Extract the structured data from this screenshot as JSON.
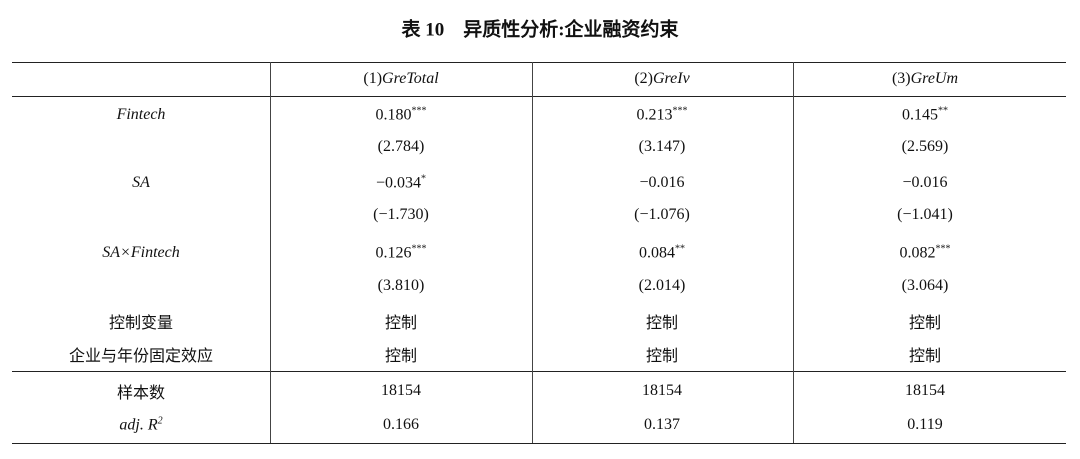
{
  "title": "表 10　异质性分析:企业融资约束",
  "table": {
    "header": [
      {
        "num": "(1)",
        "name": "GreTotal"
      },
      {
        "num": "(2)",
        "name": "GreIv"
      },
      {
        "num": "(3)",
        "name": "GreUm"
      }
    ],
    "rows": [
      {
        "label": {
          "text": "Fintech",
          "style": "italic"
        },
        "cells": [
          {
            "value": "0.180",
            "stars": "***"
          },
          {
            "value": "0.213",
            "stars": "***"
          },
          {
            "value": "0.145",
            "stars": "**"
          }
        ]
      },
      {
        "cells": [
          {
            "value": "(2.784)"
          },
          {
            "value": "(3.147)"
          },
          {
            "value": "(2.569)"
          }
        ]
      },
      {
        "label": {
          "text": "SA",
          "style": "italic"
        },
        "cells": [
          {
            "value": "−0.034",
            "stars": "*"
          },
          {
            "value": "−0.016"
          },
          {
            "value": "−0.016"
          }
        ]
      },
      {
        "cells": [
          {
            "value": "(−1.730)"
          },
          {
            "value": "(−1.076)"
          },
          {
            "value": "(−1.041)"
          }
        ]
      },
      {
        "label": {
          "text": "SA×Fintech",
          "style": "italic"
        },
        "cells": [
          {
            "value": "0.126",
            "stars": "***"
          },
          {
            "value": "0.084",
            "stars": "**"
          },
          {
            "value": "0.082",
            "stars": "***"
          }
        ]
      },
      {
        "cells": [
          {
            "value": "(3.810)"
          },
          {
            "value": "(2.014)"
          },
          {
            "value": "(3.064)"
          }
        ]
      },
      {
        "label": {
          "text": "控制变量",
          "style": "normal"
        },
        "cells": [
          {
            "value": "控制"
          },
          {
            "value": "控制"
          },
          {
            "value": "控制"
          }
        ]
      },
      {
        "label": {
          "text": "企业与年份固定效应",
          "style": "normal"
        },
        "cells": [
          {
            "value": "控制"
          },
          {
            "value": "控制"
          },
          {
            "value": "控制"
          }
        ]
      },
      {
        "label": {
          "text": "样本数",
          "style": "normal"
        },
        "cells": [
          {
            "value": "18154"
          },
          {
            "value": "18154"
          },
          {
            "value": "18154"
          }
        ]
      },
      {
        "label": {
          "text": "adj. R",
          "sup": "2",
          "style": "italic"
        },
        "cells": [
          {
            "value": "0.166"
          },
          {
            "value": "0.137"
          },
          {
            "value": "0.119"
          }
        ]
      }
    ]
  }
}
